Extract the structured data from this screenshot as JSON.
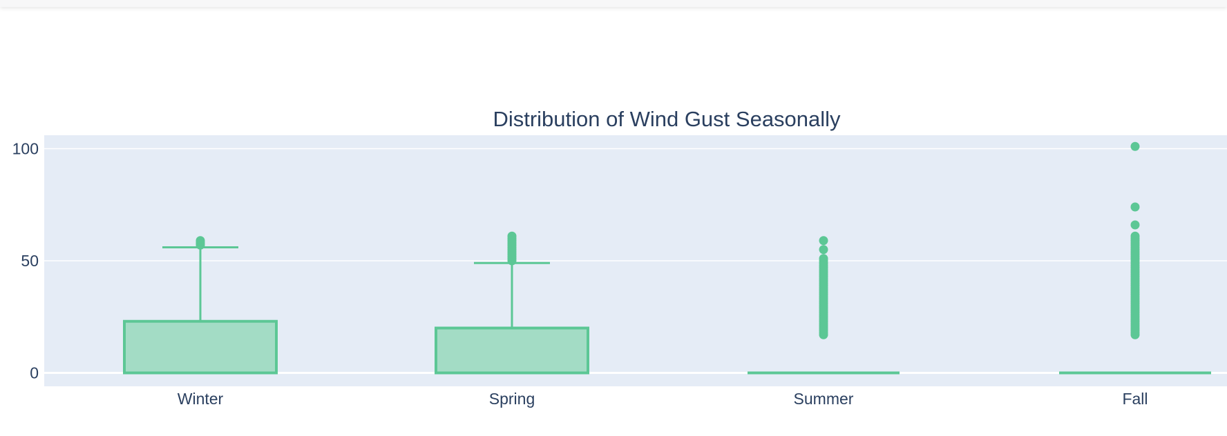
{
  "chart_data": {
    "type": "box",
    "title": "Distribution of Wind Gust Seasonally",
    "xlabel": "",
    "ylabel": "",
    "categories": [
      "Winter",
      "Spring",
      "Summer",
      "Fall"
    ],
    "ylim": [
      -6,
      106
    ],
    "yticks": [
      0,
      50,
      100
    ],
    "grid": true,
    "legend": "none",
    "colors": {
      "plot_bg": "#e5ecf6",
      "grid": "#ffffff",
      "box_line": "#5cc795",
      "box_fill": "#a3dcc5",
      "text": "#2a3f5f"
    },
    "boxes": [
      {
        "category": "Winter",
        "min": 0,
        "q1": 0,
        "median": 0,
        "q3": 23,
        "max": 56,
        "outliers": [
          57,
          57.5,
          58,
          58.5,
          59
        ]
      },
      {
        "category": "Spring",
        "min": 0,
        "q1": 0,
        "median": 0,
        "q3": 20,
        "max": 49,
        "outliers": [
          50,
          51,
          52,
          53,
          54,
          55,
          56,
          57,
          58,
          59,
          60,
          61
        ]
      },
      {
        "category": "Summer",
        "min": 0,
        "q1": 0,
        "median": 0,
        "q3": 0,
        "max": 0,
        "outliers": [
          17,
          18,
          19,
          20,
          21,
          22,
          23,
          24,
          25,
          26,
          27,
          28,
          29,
          30,
          31,
          32,
          33,
          34,
          35,
          36,
          37,
          38,
          39,
          40,
          41,
          42,
          43,
          44,
          45,
          46,
          47,
          48,
          49,
          50,
          51,
          55,
          59
        ]
      },
      {
        "category": "Fall",
        "min": 0,
        "q1": 0,
        "median": 0,
        "q3": 0,
        "max": 0,
        "outliers": [
          17,
          18,
          19,
          20,
          21,
          22,
          23,
          24,
          25,
          26,
          27,
          28,
          29,
          30,
          31,
          32,
          33,
          34,
          35,
          36,
          37,
          38,
          39,
          40,
          41,
          42,
          43,
          44,
          45,
          46,
          47,
          48,
          49,
          50,
          51,
          52,
          53,
          54,
          55,
          56,
          57,
          58,
          59,
          60,
          61,
          66,
          74,
          101
        ]
      }
    ]
  }
}
